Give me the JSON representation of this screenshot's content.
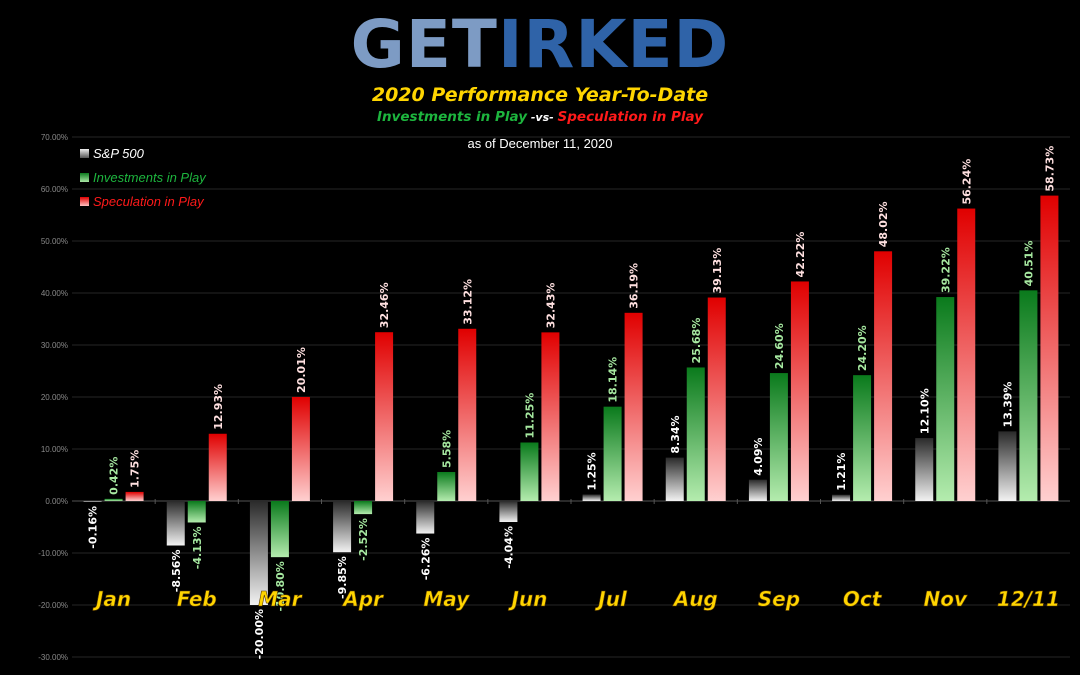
{
  "logo": {
    "part1": "GET",
    "part2": "IRKED"
  },
  "header": {
    "title": "2020 Performance Year-To-Date",
    "subtitle_left": "Investments in Play",
    "subtitle_vs": " -vs- ",
    "subtitle_right": "Speculation in Play",
    "as_of": "as of December 11, 2020"
  },
  "colors": {
    "sp500": "#9a9a9a",
    "investments": "#2fa83a",
    "speculation": "#ee0000",
    "month_label": "#ffd500"
  },
  "chart_data": {
    "type": "bar",
    "categories": [
      "Jan",
      "Feb",
      "Mar",
      "Apr",
      "May",
      "Jun",
      "Jul",
      "Aug",
      "Sep",
      "Oct",
      "Nov",
      "12/11"
    ],
    "ylim": [
      -30,
      70
    ],
    "yticks": [
      -30,
      -20,
      -10,
      0,
      10,
      20,
      30,
      40,
      50,
      60,
      70
    ],
    "ytick_labels": [
      "-30.00%",
      "-20.00%",
      "-10.00%",
      "0.00%",
      "10.00%",
      "20.00%",
      "30.00%",
      "40.00%",
      "50.00%",
      "60.00%",
      "70.00%"
    ],
    "legend_position": "top-left",
    "series": [
      {
        "name": "S&P 500",
        "color": "#9a9a9a",
        "values": [
          -0.16,
          -8.56,
          -20.0,
          -9.85,
          -6.26,
          -4.04,
          1.25,
          8.34,
          4.09,
          1.21,
          12.1,
          13.39
        ],
        "labels": [
          "-0.16%",
          "-8.56%",
          "-20.00%",
          "-9.85%",
          "-6.26%",
          "-4.04%",
          "1.25%",
          "8.34%",
          "4.09%",
          "1.21%",
          "12.10%",
          "13.39%"
        ]
      },
      {
        "name": "Investments in Play",
        "color": "#2fa83a",
        "values": [
          0.42,
          -4.13,
          -10.8,
          -2.52,
          5.58,
          11.25,
          18.14,
          25.68,
          24.6,
          24.2,
          39.22,
          40.51
        ],
        "labels": [
          "0.42%",
          "-4.13%",
          "-10.80%",
          "-2.52%",
          "5.58%",
          "11.25%",
          "18.14%",
          "25.68%",
          "24.60%",
          "24.20%",
          "39.22%",
          "40.51%"
        ]
      },
      {
        "name": "Speculation in Play",
        "color": "#ee0000",
        "values": [
          1.75,
          12.93,
          20.01,
          32.46,
          33.12,
          32.43,
          36.19,
          39.13,
          42.22,
          48.02,
          56.24,
          58.73
        ],
        "labels": [
          "1.75%",
          "12.93%",
          "20.01%",
          "32.46%",
          "33.12%",
          "32.43%",
          "36.19%",
          "39.13%",
          "42.22%",
          "48.02%",
          "56.24%",
          "58.73%"
        ]
      }
    ]
  }
}
